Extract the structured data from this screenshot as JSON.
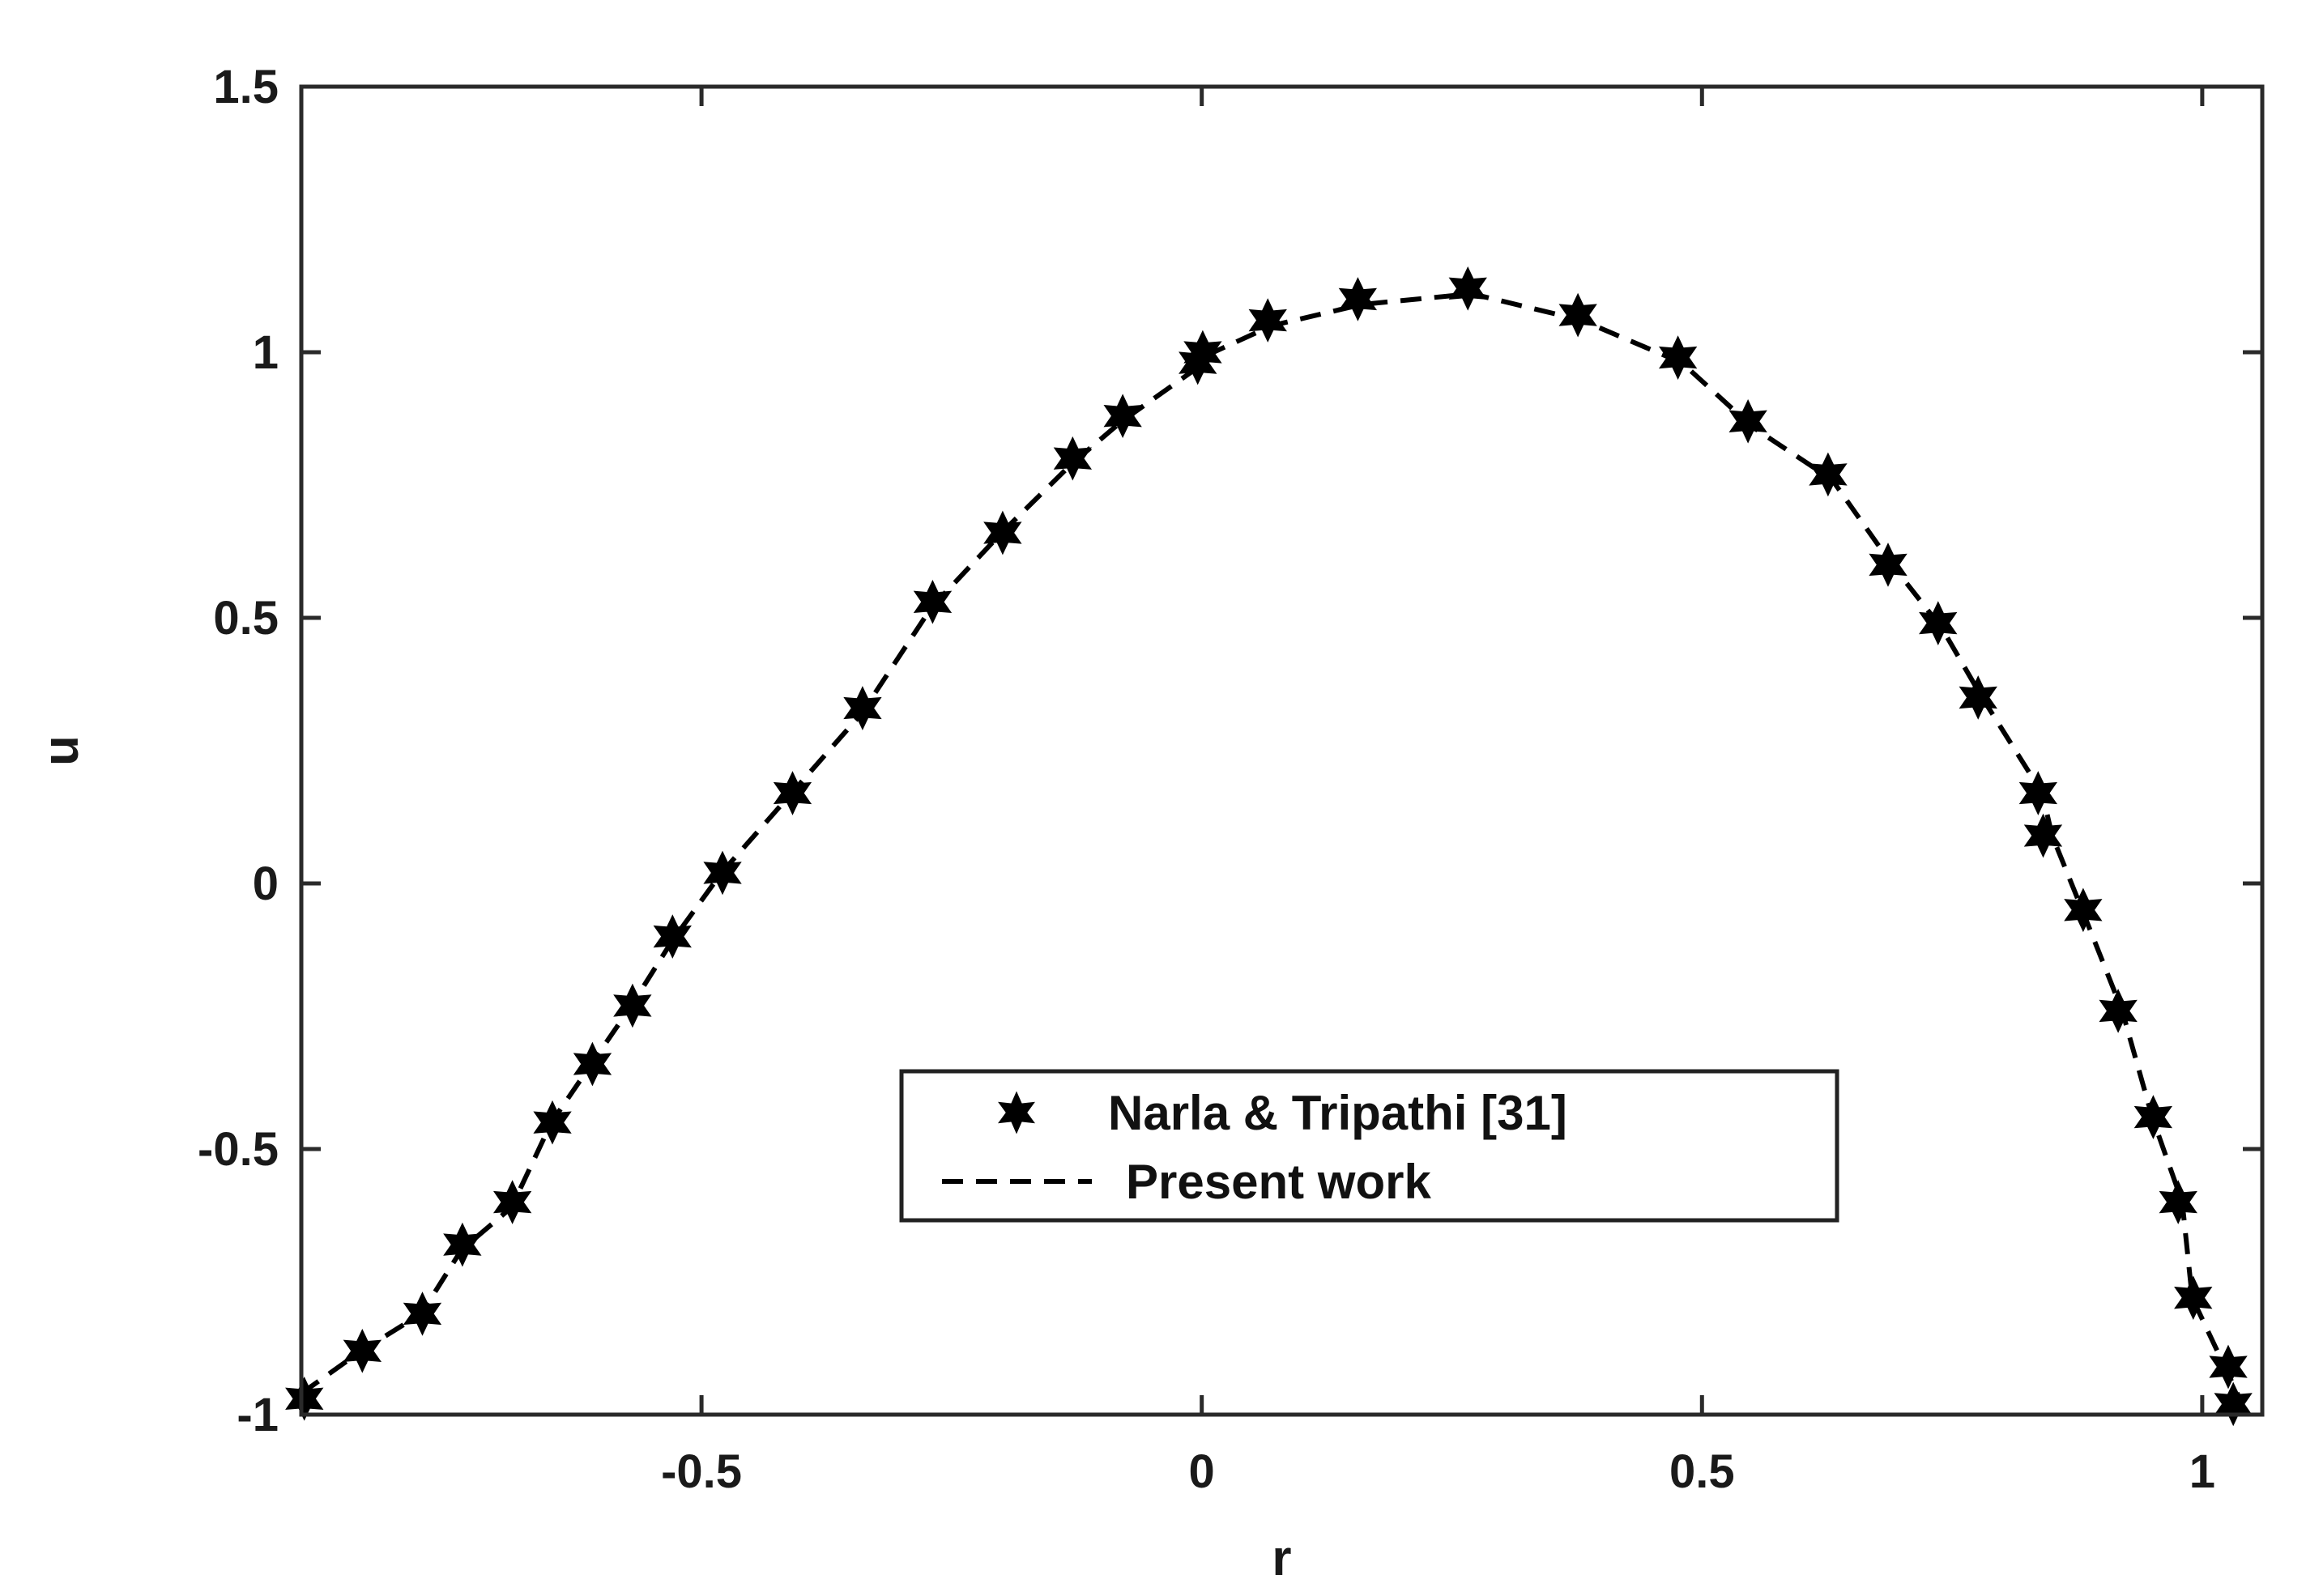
{
  "chart_data": {
    "type": "line",
    "title": "",
    "xlabel": "r",
    "ylabel": "u",
    "xlim": [
      -0.9,
      1.06
    ],
    "ylim": [
      -1,
      1.5
    ],
    "xticks": [
      -0.5,
      0,
      0.5,
      1
    ],
    "yticks": [
      -1,
      -0.5,
      0,
      0.5,
      1,
      1.5
    ],
    "xtick_labels": [
      "-0.5",
      "0",
      "0.5",
      "1"
    ],
    "ytick_labels": [
      "-1",
      "-0.5",
      "0",
      "0.5",
      "1",
      "1.5"
    ],
    "grid": false,
    "legend_position": "lower-center",
    "series": [
      {
        "name": "Narla & Tripathi [31]",
        "style": "markers",
        "marker": "hexagram",
        "color": "#000000",
        "x": [
          -0.897,
          -0.839,
          -0.779,
          -0.739,
          -0.689,
          -0.649,
          -0.609,
          -0.569,
          -0.529,
          -0.479,
          -0.409,
          -0.339,
          -0.269,
          -0.199,
          -0.129,
          -0.079,
          -0.004,
          0.001,
          0.066,
          0.156,
          0.266,
          0.376,
          0.476,
          0.546,
          0.626,
          0.686,
          0.736,
          0.776,
          0.836,
          0.841,
          0.881,
          0.916,
          0.951,
          0.976,
          0.991,
          1.026,
          1.031
        ],
        "y": [
          -0.97,
          -0.88,
          -0.81,
          -0.68,
          -0.6,
          -0.45,
          -0.34,
          -0.23,
          -0.1,
          0.02,
          0.17,
          0.33,
          0.53,
          0.66,
          0.8,
          0.88,
          0.98,
          1.0,
          1.06,
          1.1,
          1.12,
          1.07,
          0.99,
          0.87,
          0.77,
          0.6,
          0.49,
          0.35,
          0.17,
          0.09,
          -0.05,
          -0.24,
          -0.44,
          -0.6,
          -0.78,
          -0.91,
          -0.98
        ]
      },
      {
        "name": "Present work",
        "style": "dashed",
        "color": "#000000",
        "x": [
          -0.9,
          -0.84,
          -0.78,
          -0.74,
          -0.69,
          -0.65,
          -0.61,
          -0.57,
          -0.53,
          -0.48,
          -0.41,
          -0.34,
          -0.27,
          -0.2,
          -0.13,
          -0.08,
          -0.005,
          0.0,
          0.07,
          0.16,
          0.27,
          0.38,
          0.48,
          0.55,
          0.63,
          0.69,
          0.74,
          0.78,
          0.84,
          0.85,
          0.88,
          0.92,
          0.95,
          0.98,
          0.99,
          1.02,
          1.04
        ],
        "y": [
          -0.96,
          -0.88,
          -0.81,
          -0.69,
          -0.61,
          -0.45,
          -0.34,
          -0.23,
          -0.11,
          0.02,
          0.17,
          0.32,
          0.52,
          0.66,
          0.79,
          0.87,
          0.97,
          0.99,
          1.05,
          1.09,
          1.11,
          1.06,
          0.98,
          0.86,
          0.76,
          0.6,
          0.48,
          0.35,
          0.17,
          0.09,
          -0.05,
          -0.24,
          -0.44,
          -0.6,
          -0.78,
          -0.9,
          -0.98
        ]
      }
    ]
  }
}
